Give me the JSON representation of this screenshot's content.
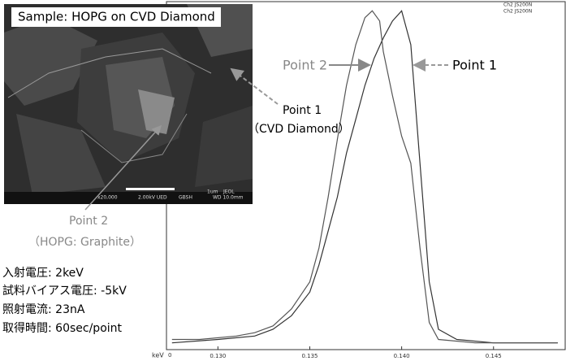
{
  "chart_data": {
    "type": "line",
    "x_label": "keV",
    "header": [
      "Ch2 JS200N",
      "Ch2 JS200N"
    ],
    "xlim": [
      0.1272,
      0.1489
    ],
    "ylim": [
      0,
      102
    ],
    "xticks": [
      {
        "value": 0.13,
        "label": "0.130"
      },
      {
        "value": 0.135,
        "label": "0.135"
      },
      {
        "value": 0.14,
        "label": "0.140"
      },
      {
        "value": 0.145,
        "label": "0.145"
      }
    ],
    "yticks": [
      0
    ],
    "series": [
      {
        "name": "Point 1",
        "color": "#333333",
        "x": [
          0.1275,
          0.13,
          0.132,
          0.133,
          0.134,
          0.135,
          0.1355,
          0.136,
          0.1365,
          0.137,
          0.1375,
          0.138,
          0.1385,
          0.139,
          0.1395,
          0.14,
          0.1405,
          0.141,
          0.1415,
          0.142,
          0.143,
          0.145,
          0.1485
        ],
        "values": [
          2,
          3,
          4,
          6,
          10,
          17,
          25,
          35,
          45,
          58,
          68,
          78,
          86,
          92,
          97,
          100,
          90,
          55,
          20,
          6,
          3,
          2,
          2
        ]
      },
      {
        "name": "Point 2",
        "color": "#555555",
        "x": [
          0.1275,
          0.129,
          0.131,
          0.132,
          0.133,
          0.134,
          0.135,
          0.1355,
          0.136,
          0.1365,
          0.137,
          0.1375,
          0.138,
          0.1384,
          0.1388,
          0.139,
          0.1395,
          0.14,
          0.1405,
          0.141,
          0.1415,
          0.142,
          0.144,
          0.146,
          0.1485
        ],
        "values": [
          3,
          3,
          4,
          5,
          7,
          12,
          20,
          30,
          45,
          62,
          78,
          90,
          98,
          100,
          97,
          88,
          75,
          63,
          55,
          30,
          8,
          3,
          2,
          2,
          2
        ]
      }
    ],
    "annotations": {
      "point2_label": "Point 2",
      "point1_label": "Point 1",
      "image_point1": [
        "Point 1",
        "（CVD Diamond）"
      ],
      "image_point2": [
        "Point 2",
        "（HOPG: Graphite）"
      ]
    }
  },
  "image": {
    "caption": "Sample: HOPG on CVD Diamond",
    "info": [
      "x20,000",
      "2.00kV UED",
      "GBSH",
      "1um",
      "JEOL",
      "WD 10.0mm"
    ]
  },
  "conditions": [
    "入射電圧: 2keV",
    "試料バイアス電圧: -5kV",
    "照射電流: 23nA",
    "取得時間: 60sec/point"
  ]
}
